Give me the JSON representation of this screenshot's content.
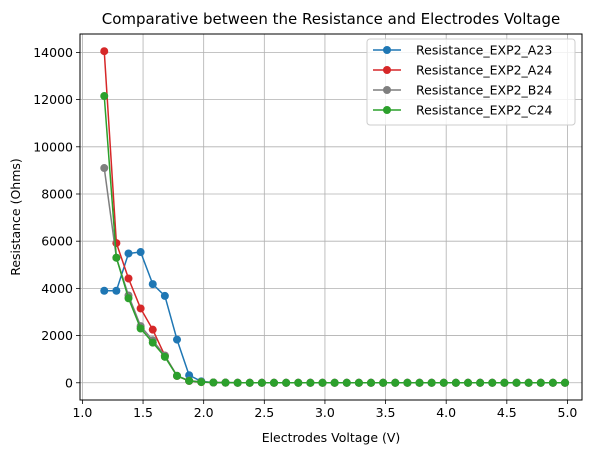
{
  "chart_data": {
    "type": "line",
    "title": "Comparative between the Resistance and Electrodes Voltage",
    "xlabel": "Electrodes Voltage (V)",
    "ylabel": "Resistance (Ohms)",
    "xlim": [
      0.98,
      5.12
    ],
    "ylim": [
      -730,
      14780
    ],
    "xticks": [
      1.0,
      1.5,
      2.0,
      2.5,
      3.0,
      3.5,
      4.0,
      4.5,
      5.0
    ],
    "xtick_labels": [
      "1.0",
      "1.5",
      "2.0",
      "2.5",
      "3.0",
      "3.5",
      "4.0",
      "4.5",
      "5.0"
    ],
    "yticks": [
      0,
      2000,
      4000,
      6000,
      8000,
      10000,
      12000,
      14000
    ],
    "ytick_labels": [
      "0",
      "2000",
      "4000",
      "6000",
      "8000",
      "10000",
      "12000",
      "14000"
    ],
    "grid": true,
    "legend_position": "top-right",
    "x": [
      1.18,
      1.28,
      1.38,
      1.48,
      1.58,
      1.68,
      1.78,
      1.88,
      1.98,
      2.08,
      2.18,
      2.28,
      2.38,
      2.48,
      2.58,
      2.68,
      2.78,
      2.88,
      2.98,
      3.08,
      3.18,
      3.28,
      3.38,
      3.48,
      3.58,
      3.68,
      3.78,
      3.88,
      3.98,
      4.08,
      4.18,
      4.28,
      4.38,
      4.48,
      4.58,
      4.68,
      4.78,
      4.88,
      4.98
    ],
    "series": [
      {
        "name": "Resistance_EXP2_A23",
        "color": "#1f77b4",
        "values": [
          3900,
          3900,
          5480,
          5540,
          4180,
          3680,
          1830,
          320,
          60,
          10,
          5,
          0,
          0,
          0,
          0,
          0,
          0,
          0,
          0,
          0,
          0,
          0,
          0,
          0,
          0,
          0,
          0,
          0,
          0,
          0,
          0,
          0,
          0,
          0,
          0,
          0,
          0,
          0,
          0
        ]
      },
      {
        "name": "Resistance_EXP2_A24",
        "color": "#d62728",
        "values": [
          14050,
          5920,
          4420,
          3150,
          2250,
          1150,
          290,
          80,
          30,
          10,
          5,
          0,
          0,
          0,
          0,
          0,
          0,
          0,
          0,
          0,
          0,
          0,
          0,
          0,
          0,
          0,
          0,
          0,
          0,
          0,
          0,
          0,
          0,
          0,
          0,
          0,
          0,
          0,
          0
        ]
      },
      {
        "name": "Resistance_EXP2_B24",
        "color": "#7f7f7f",
        "values": [
          9100,
          5300,
          3700,
          2400,
          1800,
          1150,
          300,
          90,
          40,
          10,
          5,
          0,
          0,
          0,
          0,
          0,
          0,
          0,
          0,
          0,
          0,
          0,
          0,
          0,
          0,
          0,
          0,
          0,
          0,
          0,
          0,
          0,
          0,
          0,
          0,
          0,
          0,
          0,
          0
        ]
      },
      {
        "name": "Resistance_EXP2_C24",
        "color": "#2ca02c",
        "values": [
          12150,
          5300,
          3580,
          2300,
          1700,
          1100,
          290,
          80,
          30,
          10,
          5,
          0,
          0,
          0,
          0,
          0,
          0,
          0,
          0,
          0,
          0,
          0,
          0,
          0,
          0,
          0,
          0,
          0,
          0,
          0,
          0,
          0,
          0,
          0,
          0,
          0,
          0,
          0,
          0
        ]
      }
    ]
  }
}
